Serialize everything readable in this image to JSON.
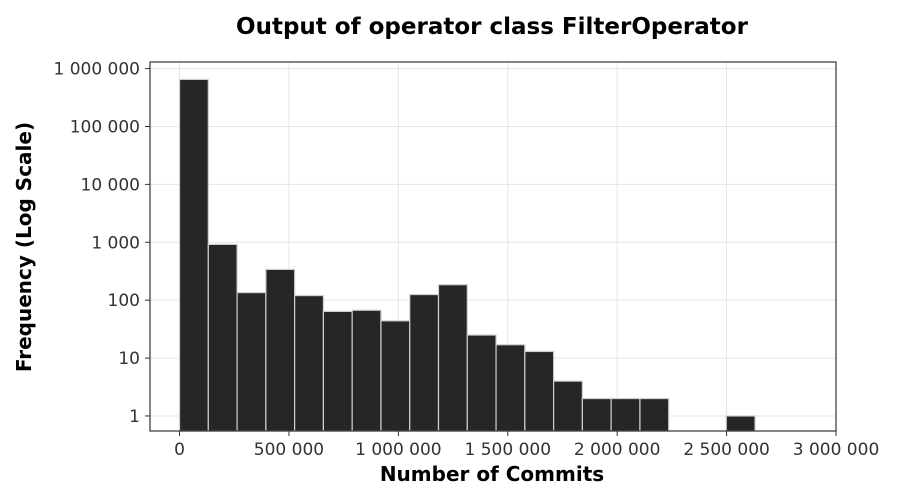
{
  "chart_data": {
    "type": "bar",
    "title": "Output of operator class FilterOperator",
    "xlabel": "Number of Commits",
    "ylabel": "Frequency (Log Scale)",
    "y_scale": "log",
    "grid": true,
    "bar_color": "#262626",
    "bar_edge_color": "#cfcfcf",
    "xlim": [
      -135000,
      3000000
    ],
    "ylim": [
      0.55,
      1300000
    ],
    "bin_width": 131500,
    "bins": [
      {
        "start": 0,
        "value": 650000
      },
      {
        "start": 131500,
        "value": 920
      },
      {
        "start": 263000,
        "value": 135
      },
      {
        "start": 394500,
        "value": 340
      },
      {
        "start": 526000,
        "value": 120
      },
      {
        "start": 657500,
        "value": 64
      },
      {
        "start": 789000,
        "value": 67
      },
      {
        "start": 920500,
        "value": 44
      },
      {
        "start": 1052000,
        "value": 125
      },
      {
        "start": 1183500,
        "value": 185
      },
      {
        "start": 1315000,
        "value": 25
      },
      {
        "start": 1446500,
        "value": 17
      },
      {
        "start": 1578000,
        "value": 13
      },
      {
        "start": 1709500,
        "value": 4
      },
      {
        "start": 1841000,
        "value": 2
      },
      {
        "start": 1972500,
        "value": 2
      },
      {
        "start": 2104000,
        "value": 2
      },
      {
        "start": 2235500,
        "value": 0
      },
      {
        "start": 2367000,
        "value": 0
      },
      {
        "start": 2498500,
        "value": 1
      },
      {
        "start": 2630000,
        "value": 0
      },
      {
        "start": 2761500,
        "value": 0
      }
    ],
    "x_ticks": [
      {
        "value": 0,
        "label": "0"
      },
      {
        "value": 500000,
        "label": "500 000"
      },
      {
        "value": 1000000,
        "label": "1 000 000"
      },
      {
        "value": 1500000,
        "label": "1 500 000"
      },
      {
        "value": 2000000,
        "label": "2 000 000"
      },
      {
        "value": 2500000,
        "label": "2 500 000"
      },
      {
        "value": 3000000,
        "label": "3 000 000"
      }
    ],
    "y_ticks": [
      {
        "value": 1,
        "label": "1"
      },
      {
        "value": 10,
        "label": "10"
      },
      {
        "value": 100,
        "label": "100"
      },
      {
        "value": 1000,
        "label": "1 000"
      },
      {
        "value": 10000,
        "label": "10 000"
      },
      {
        "value": 100000,
        "label": "100 000"
      },
      {
        "value": 1000000,
        "label": "1 000 000"
      }
    ]
  }
}
